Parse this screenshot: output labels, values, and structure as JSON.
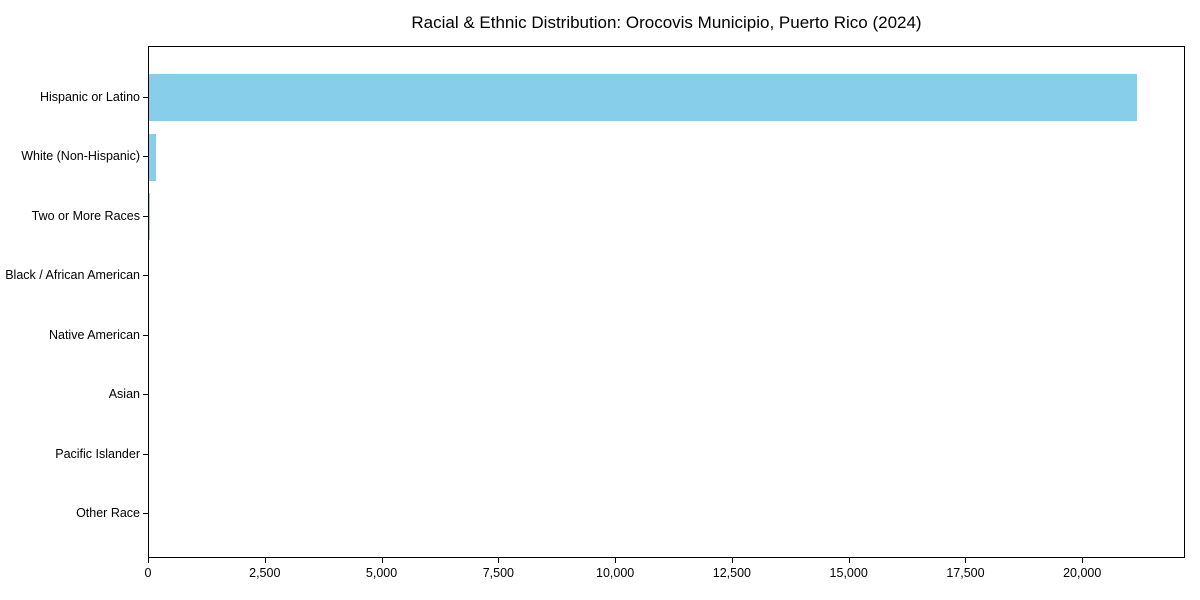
{
  "figure": {
    "background_color": "#FFFFFF",
    "spine_color": "#000000",
    "text_color": "#000000"
  },
  "chart_data": {
    "type": "bar",
    "orientation": "horizontal",
    "title": "Racial & Ethnic Distribution: Orocovis Municipio, Puerto Rico (2024)",
    "categories": [
      "Hispanic or Latino",
      "White (Non-Hispanic)",
      "Two or More Races",
      "Black / African American",
      "Native American",
      "Asian",
      "Pacific Islander",
      "Other Race"
    ],
    "values": [
      21150,
      150,
      25,
      0,
      0,
      0,
      0,
      0
    ],
    "bar_color": "#87CEEB",
    "xlabel": "",
    "ylabel": "",
    "xlim": [
      0,
      22200
    ],
    "xticks": [
      0,
      2500,
      5000,
      7500,
      10000,
      12500,
      15000,
      17500,
      20000
    ],
    "xtick_labels": [
      "0",
      "2,500",
      "5,000",
      "7,500",
      "10,000",
      "12,500",
      "15,000",
      "17,500",
      "20,000"
    ],
    "grid": false,
    "legend": "none"
  }
}
